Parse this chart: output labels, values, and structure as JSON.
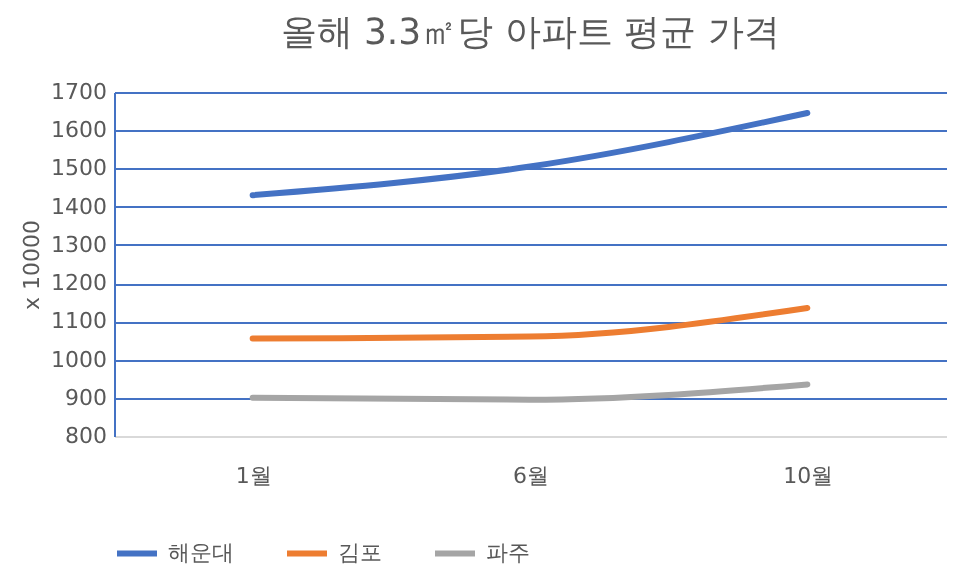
{
  "chart_data": {
    "type": "line",
    "title": "올해 3.3㎡당 아파트 평균 가격",
    "ylabel": "x 10000",
    "categories": [
      "1월",
      "6월",
      "10월"
    ],
    "series": [
      {
        "name": "해운대",
        "color": "#4472c4",
        "values": [
          1430,
          1505,
          1645
        ]
      },
      {
        "name": "김포",
        "color": "#ed7d31",
        "values": [
          1055,
          1060,
          1135
        ]
      },
      {
        "name": "파주",
        "color": "#a5a5a5",
        "values": [
          900,
          895,
          935
        ]
      }
    ],
    "ylim": [
      800,
      1700
    ],
    "yticks": [
      800,
      900,
      1000,
      1100,
      1200,
      1300,
      1400,
      1500,
      1600,
      1700
    ],
    "grid": "y",
    "legend": "bottom",
    "marker": "none",
    "line_style": "solid"
  }
}
